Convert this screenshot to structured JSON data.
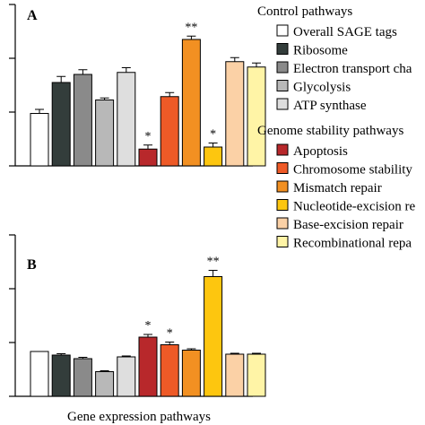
{
  "chart_data": [
    {
      "type": "bar",
      "panel_label": "A",
      "categories": [
        "Overall SAGE tags",
        "Ribosome",
        "Electron transport chain",
        "Glycolysis",
        "ATP synthase",
        "Apoptosis",
        "Chromosome stability",
        "Mismatch repair",
        "Nucleotide-excision repair",
        "Base-excision repair",
        "Recombinational repair"
      ],
      "values": [
        0.78,
        1.24,
        1.36,
        0.98,
        1.39,
        0.25,
        1.03,
        1.88,
        0.28,
        1.55,
        1.47
      ],
      "errors": [
        0.06,
        0.09,
        0.07,
        0.03,
        0.07,
        0.06,
        0.06,
        0.05,
        0.06,
        0.06,
        0.06
      ],
      "annotations": [
        "",
        "",
        "",
        "",
        "",
        "*",
        "",
        "**",
        "*",
        "",
        ""
      ],
      "yticks": [
        "",
        "",
        "",
        ""
      ],
      "ylim": [
        0,
        2.4
      ]
    },
    {
      "type": "bar",
      "panel_label": "B",
      "categories": [
        "Overall SAGE tags",
        "Ribosome",
        "Electron transport chain",
        "Glycolysis",
        "ATP synthase",
        "Apoptosis",
        "Chromosome stability",
        "Mismatch repair",
        "Nucleotide-excision repair",
        "Base-excision repair",
        "Recombinational repair"
      ],
      "values": [
        1.0,
        0.92,
        0.84,
        0.55,
        0.88,
        1.32,
        1.15,
        1.03,
        2.67,
        0.94,
        0.94
      ],
      "errors": [
        0.0,
        0.03,
        0.03,
        0.02,
        0.02,
        0.06,
        0.06,
        0.03,
        0.14,
        0.02,
        0.02
      ],
      "annotations": [
        "",
        "",
        "",
        "",
        "",
        "*",
        "*",
        "",
        "**",
        "",
        ""
      ],
      "yticks": [
        "",
        "",
        "",
        ""
      ],
      "ylim": [
        0,
        3.6
      ]
    }
  ],
  "xlabel": "Gene expression pathways",
  "legend": {
    "control_title": "Control pathways",
    "stability_title": "Genome stability pathways",
    "items": [
      {
        "label": "Overall SAGE tags",
        "color": "#ffffff"
      },
      {
        "label": "Ribosome",
        "color": "#333d3b"
      },
      {
        "label": "Electron transport cha",
        "color": "#8a8a8a"
      },
      {
        "label": "Glycolysis",
        "color": "#b8b8b8"
      },
      {
        "label": "ATP synthase",
        "color": "#dedede"
      },
      {
        "label": "Apoptosis",
        "color": "#b8282b"
      },
      {
        "label": "Chromosome stability",
        "color": "#ee5a27"
      },
      {
        "label": "Mismatch repair",
        "color": "#f29022"
      },
      {
        "label": "Nucleotide-excision re",
        "color": "#fdc60f"
      },
      {
        "label": "Base-excision repair",
        "color": "#fbd1a6"
      },
      {
        "label": "Recombinational repa",
        "color": "#fff4a6"
      }
    ]
  }
}
